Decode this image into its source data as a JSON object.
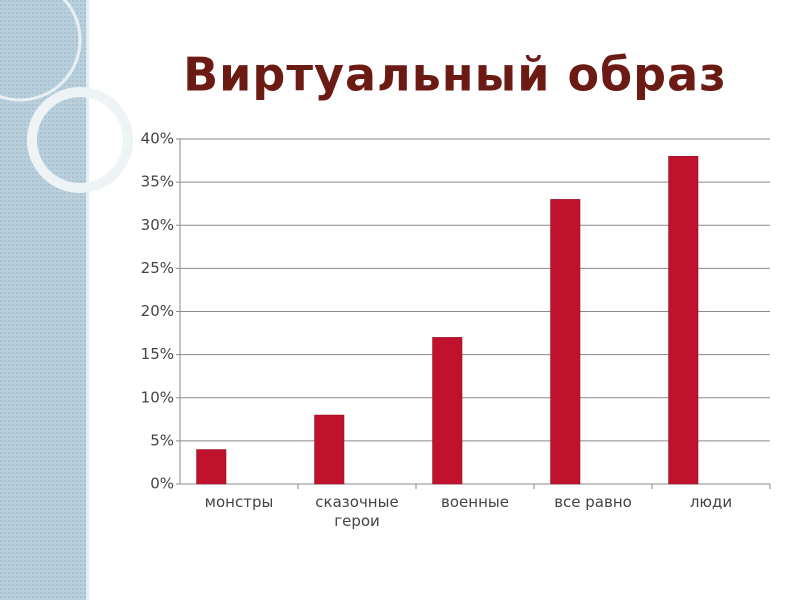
{
  "chart_data": {
    "type": "bar",
    "title": "Виртуальный образ",
    "categories": [
      "монстры",
      "сказочные герои",
      "военные",
      "все равно",
      "люди"
    ],
    "values": [
      4,
      8,
      17,
      33,
      38
    ],
    "color": "#c0122c",
    "ylim": [
      0,
      40
    ],
    "yticks": [
      {
        "value": 0,
        "label": "0%"
      },
      {
        "value": 5,
        "label": "5%"
      },
      {
        "value": 10,
        "label": "10%"
      },
      {
        "value": 15,
        "label": "15%"
      },
      {
        "value": 20,
        "label": "20%"
      },
      {
        "value": 25,
        "label": "25%"
      },
      {
        "value": 30,
        "label": "30%"
      },
      {
        "value": 35,
        "label": "35%"
      },
      {
        "value": 40,
        "label": "40%"
      }
    ],
    "grid": true
  }
}
